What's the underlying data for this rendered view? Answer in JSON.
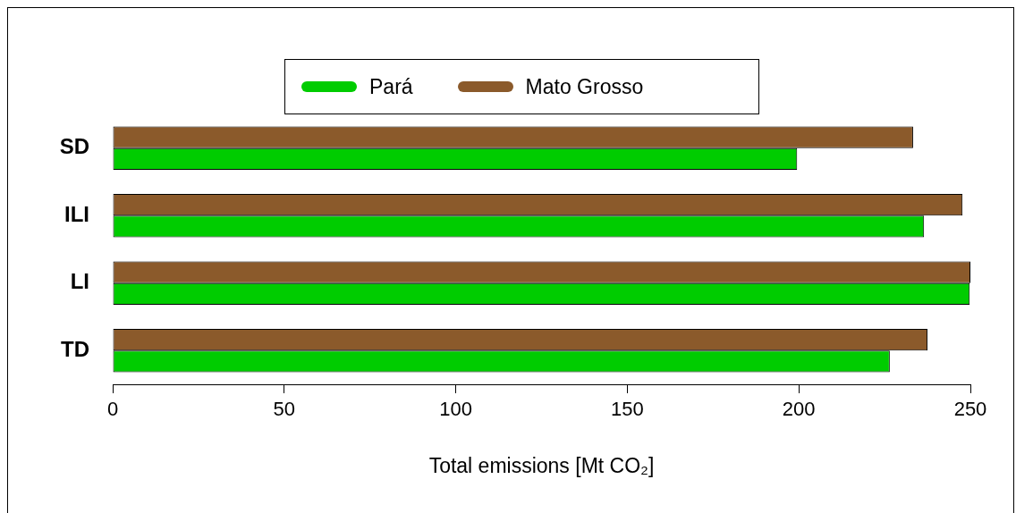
{
  "chart_data": {
    "type": "bar",
    "orientation": "horizontal",
    "xlabel": "Total emissions [Mt CO₂]",
    "categories": [
      "SD",
      "ILI",
      "LI",
      "TD"
    ],
    "series": [
      {
        "name": "Pará",
        "color": "#00cc00",
        "values": [
          199.5,
          236.5,
          249.8,
          226.5
        ]
      },
      {
        "name": "Mato Grosso",
        "color": "#8b5a2b",
        "values": [
          233.3,
          247.7,
          250,
          237.5
        ]
      }
    ],
    "xlim": [
      0,
      250
    ],
    "xticks": [
      0,
      50,
      100,
      150,
      200,
      250
    ],
    "legend": "top"
  }
}
